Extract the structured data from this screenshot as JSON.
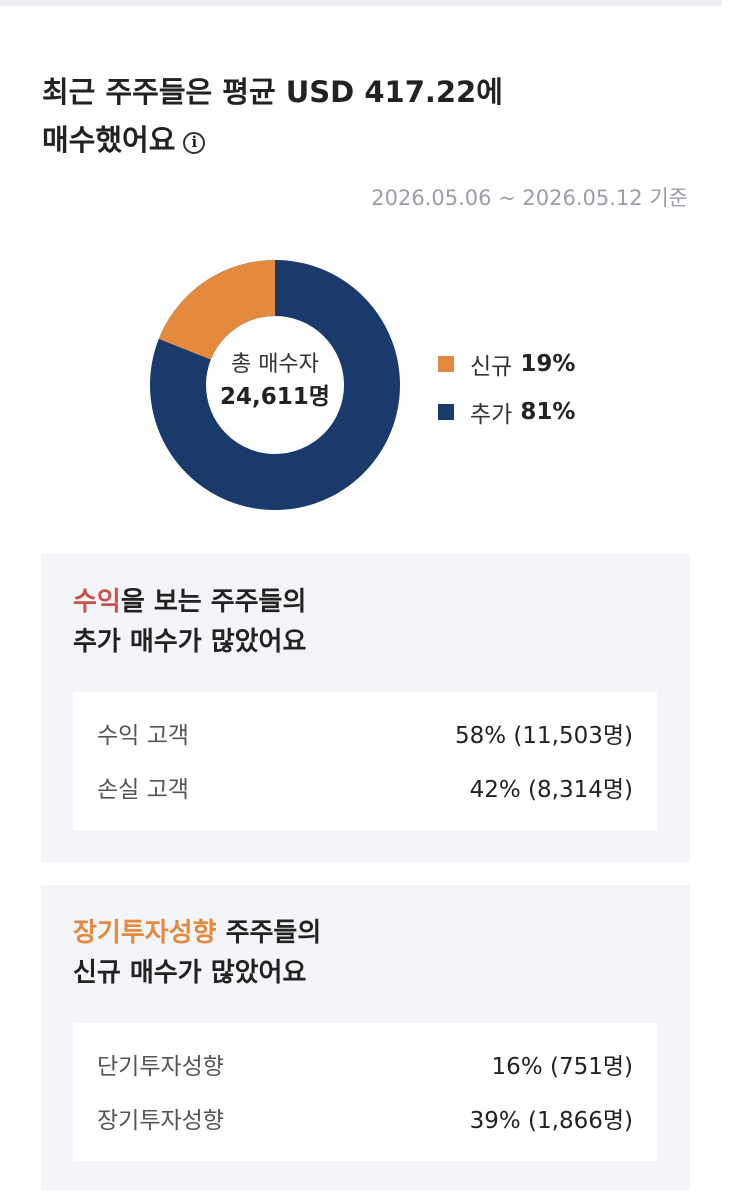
{
  "title": {
    "line1": "최근 주주들은 평균 USD 417.22에",
    "line2": "매수했어요",
    "info_icon": "info-circle-icon"
  },
  "date_range": "2026.05.06 ~ 2026.05.12 기준",
  "donut": {
    "center_label": "총 매수자",
    "center_value": "24,611명",
    "segments": [
      {
        "label": "신규",
        "percent": 19,
        "percent_text": "19%",
        "color": "#e48a3f"
      },
      {
        "label": "추가",
        "percent": 81,
        "percent_text": "81%",
        "color": "#193a6b"
      }
    ]
  },
  "profit_card": {
    "heading_highlight": "수익",
    "heading_rest": "을 보는 주주들의",
    "heading_line2": "추가 매수가 많았어요",
    "highlight_color": "#c9524d",
    "rows": [
      {
        "label": "수익 고객",
        "value": "58% (11,503명)"
      },
      {
        "label": "손실 고객",
        "value": "42% (8,314명)"
      }
    ]
  },
  "style_card": {
    "heading_highlight": "장기투자성향",
    "heading_rest": " 주주들의",
    "heading_line2": "신규 매수가 많았어요",
    "highlight_color": "#e48a3f",
    "rows": [
      {
        "label": "단기투자성향",
        "value": "16% (751명)"
      },
      {
        "label": "장기투자성향",
        "value": "39% (1,866명)"
      }
    ]
  }
}
